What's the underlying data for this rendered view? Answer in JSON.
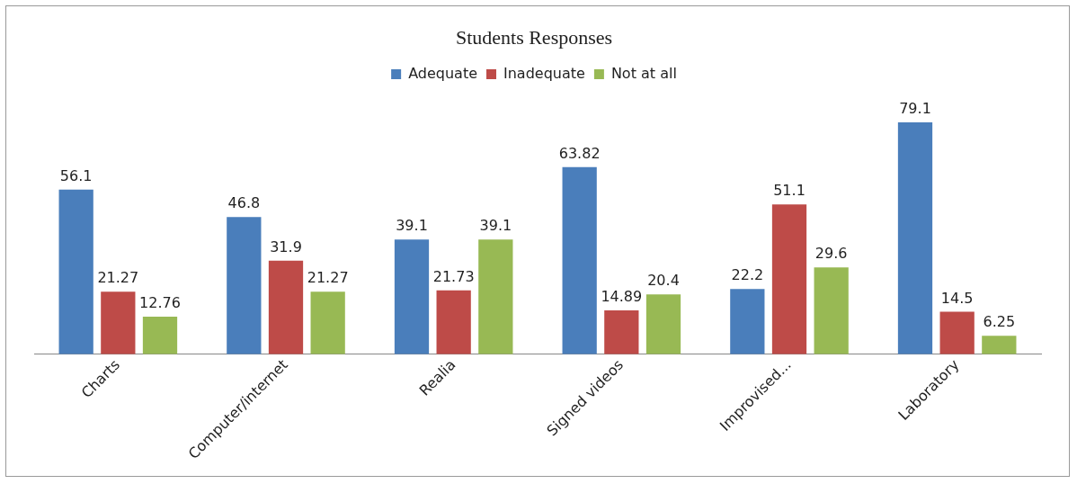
{
  "chart_data": {
    "type": "bar",
    "title": "Students Responses",
    "categories": [
      "Charts",
      "Computer/internet",
      "Realia",
      "Signed videos",
      "Improvised...",
      "Laboratory"
    ],
    "series": [
      {
        "name": "Adequate",
        "color": "#4a7ebb",
        "values": [
          56.1,
          46.8,
          39.1,
          63.82,
          22.2,
          79.1
        ]
      },
      {
        "name": "Inadequate",
        "color": "#be4b48",
        "values": [
          21.27,
          31.9,
          21.73,
          14.89,
          51.1,
          14.5
        ]
      },
      {
        "name": "Not at all",
        "color": "#98b954",
        "values": [
          12.76,
          21.27,
          39.1,
          20.4,
          29.6,
          6.25
        ]
      }
    ],
    "relative": false,
    "data_labels": true,
    "legend": "top",
    "grid": false
  }
}
